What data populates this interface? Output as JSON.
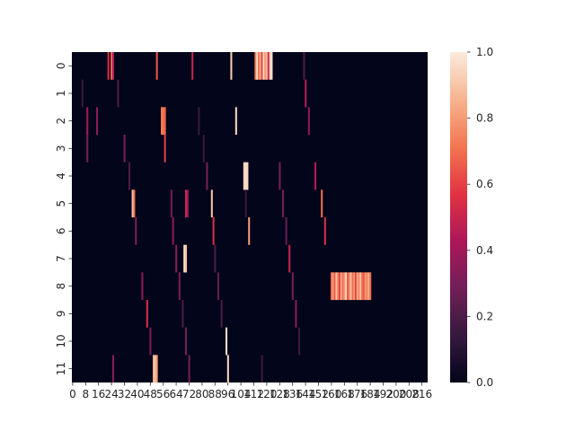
{
  "chart_data": {
    "type": "heatmap",
    "title": "",
    "xlabel": "",
    "ylabel": "",
    "n_cols": 220,
    "row_labels": [
      "0",
      "1",
      "2",
      "3",
      "4",
      "5",
      "6",
      "7",
      "8",
      "9",
      "10",
      "11"
    ],
    "x_tick_labels": [
      "0",
      "8",
      "16",
      "24",
      "32",
      "40",
      "48",
      "56",
      "64",
      "72",
      "80",
      "88",
      "96",
      "104",
      "112",
      "120",
      "128",
      "136",
      "144",
      "152",
      "160",
      "168",
      "176",
      "184",
      "192",
      "200",
      "208",
      "216"
    ],
    "x_tick_step": 8,
    "colorbar": {
      "min": 0.0,
      "max": 1.0,
      "ticks": [
        "0.0",
        "0.2",
        "0.4",
        "0.6",
        "0.8",
        "1.0"
      ]
    },
    "colormap": [
      "#03051a",
      "#36193e",
      "#701f57",
      "#ad1759",
      "#e13342",
      "#f37651",
      "#f6b48f",
      "#faebdd"
    ],
    "background_value": 0.0,
    "cells": [
      [
        0,
        22,
        0.55
      ],
      [
        0,
        24,
        0.7
      ],
      [
        0,
        25,
        0.45
      ],
      [
        0,
        52,
        0.65
      ],
      [
        0,
        74,
        0.5
      ],
      [
        0,
        98,
        0.92
      ],
      [
        0,
        113,
        0.75
      ],
      [
        0,
        114,
        0.95
      ],
      [
        0,
        115,
        0.7
      ],
      [
        0,
        116,
        0.85
      ],
      [
        0,
        117,
        0.6
      ],
      [
        0,
        118,
        0.95
      ],
      [
        0,
        119,
        0.8
      ],
      [
        0,
        120,
        0.88
      ],
      [
        0,
        121,
        0.5
      ],
      [
        0,
        122,
        0.92
      ],
      [
        0,
        123,
        0.97
      ],
      [
        0,
        143,
        0.2
      ],
      [
        1,
        6,
        0.15
      ],
      [
        1,
        28,
        0.2
      ],
      [
        1,
        144,
        0.45
      ],
      [
        2,
        9,
        0.4
      ],
      [
        2,
        15,
        0.35
      ],
      [
        2,
        55,
        0.72
      ],
      [
        2,
        56,
        0.72
      ],
      [
        2,
        57,
        0.68
      ],
      [
        2,
        78,
        0.15
      ],
      [
        2,
        101,
        0.95
      ],
      [
        2,
        146,
        0.35
      ],
      [
        3,
        9,
        0.3
      ],
      [
        3,
        32,
        0.3
      ],
      [
        3,
        57,
        0.6
      ],
      [
        3,
        81,
        0.15
      ],
      [
        4,
        35,
        0.2
      ],
      [
        4,
        83,
        0.3
      ],
      [
        4,
        106,
        0.95
      ],
      [
        4,
        107,
        0.97
      ],
      [
        4,
        108,
        0.95
      ],
      [
        4,
        128,
        0.3
      ],
      [
        4,
        150,
        0.45
      ],
      [
        5,
        37,
        0.9
      ],
      [
        5,
        38,
        0.7
      ],
      [
        5,
        61,
        0.3
      ],
      [
        5,
        70,
        0.5
      ],
      [
        5,
        71,
        0.4
      ],
      [
        5,
        86,
        0.9
      ],
      [
        5,
        107,
        0.15
      ],
      [
        5,
        130,
        0.3
      ],
      [
        5,
        154,
        0.7
      ],
      [
        6,
        39,
        0.3
      ],
      [
        6,
        62,
        0.35
      ],
      [
        6,
        87,
        0.55
      ],
      [
        6,
        109,
        0.8
      ],
      [
        6,
        132,
        0.25
      ],
      [
        6,
        156,
        0.55
      ],
      [
        7,
        64,
        0.35
      ],
      [
        7,
        69,
        0.97
      ],
      [
        7,
        70,
        0.9
      ],
      [
        7,
        88,
        0.2
      ],
      [
        7,
        134,
        0.5
      ],
      [
        8,
        43,
        0.35
      ],
      [
        8,
        66,
        0.3
      ],
      [
        8,
        90,
        0.25
      ],
      [
        8,
        136,
        0.3
      ],
      [
        9,
        46,
        0.55
      ],
      [
        9,
        68,
        0.2
      ],
      [
        9,
        92,
        0.2
      ],
      [
        9,
        138,
        0.35
      ],
      [
        10,
        48,
        0.3
      ],
      [
        10,
        70,
        0.3
      ],
      [
        10,
        95,
        0.97
      ],
      [
        10,
        140,
        0.15
      ],
      [
        11,
        25,
        0.35
      ],
      [
        11,
        50,
        0.85
      ],
      [
        11,
        51,
        0.92
      ],
      [
        11,
        52,
        0.8
      ],
      [
        11,
        72,
        0.3
      ],
      [
        11,
        96,
        0.95
      ],
      [
        11,
        117,
        0.15
      ]
    ],
    "bands": [
      {
        "row": 8,
        "x_start": 160,
        "x_end": 185,
        "values": [
          0.7,
          0.8,
          0.65,
          0.9,
          0.75,
          0.6,
          0.85,
          0.7,
          0.8,
          0.95,
          0.65,
          0.75,
          0.9,
          0.7,
          0.8,
          0.6,
          0.85,
          0.75,
          0.9,
          0.7,
          0.65,
          0.8,
          0.75,
          0.85,
          0.7
        ]
      }
    ]
  }
}
